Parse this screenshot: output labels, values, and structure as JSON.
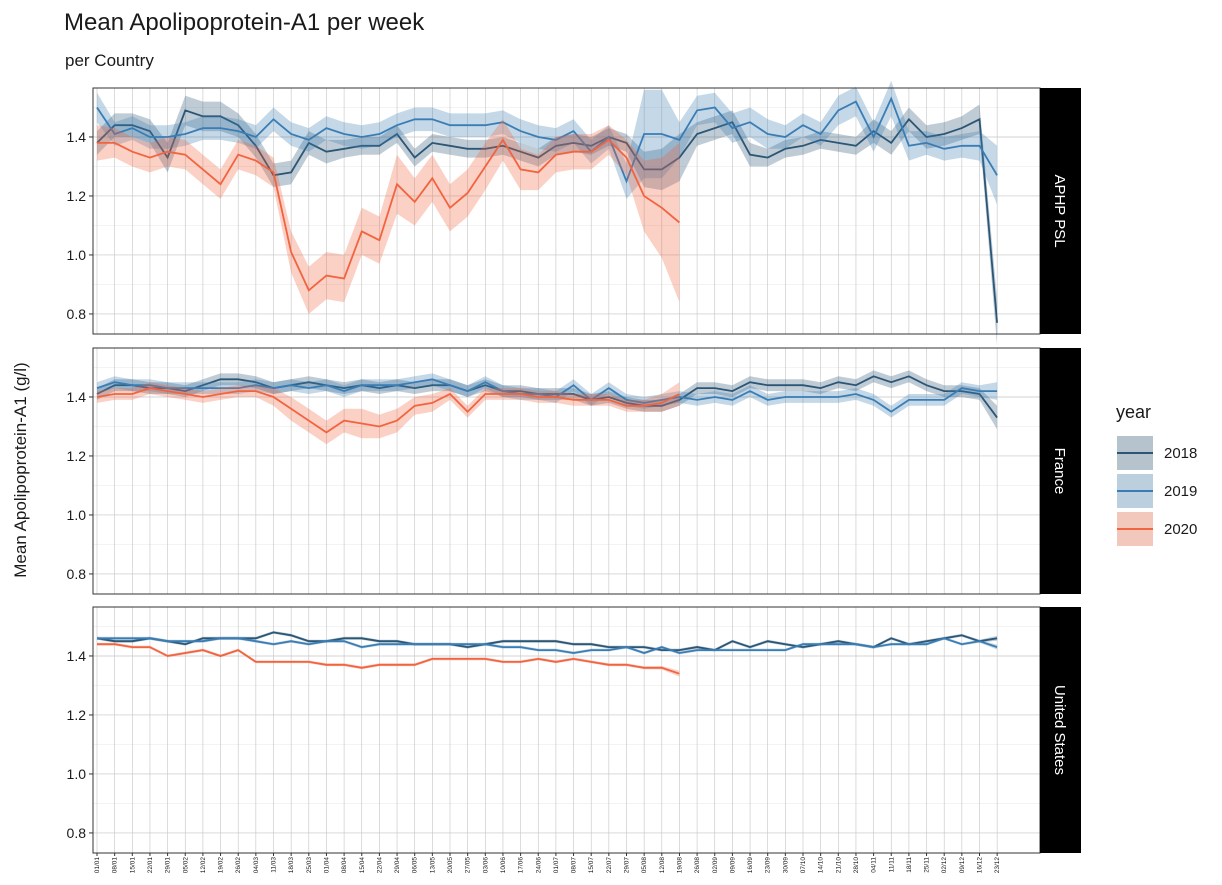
{
  "title": "Mean Apolipoprotein-A1 per week",
  "subtitle": "per Country",
  "y_label": "Mean Apolipoprotein-A1 (g/l)",
  "legend_title": "year",
  "shared": {
    "categories": [
      "01/01",
      "08/01",
      "15/01",
      "22/01",
      "29/01",
      "05/02",
      "12/02",
      "19/02",
      "26/02",
      "04/03",
      "11/03",
      "18/03",
      "25/03",
      "01/04",
      "08/04",
      "15/04",
      "22/04",
      "29/04",
      "06/05",
      "13/05",
      "20/05",
      "27/05",
      "03/06",
      "10/06",
      "17/06",
      "24/06",
      "01/07",
      "08/07",
      "15/07",
      "22/07",
      "29/07",
      "05/08",
      "12/08",
      "19/08",
      "26/08",
      "02/09",
      "09/09",
      "16/09",
      "23/09",
      "30/09",
      "07/10",
      "14/10",
      "21/10",
      "28/10",
      "04/11",
      "11/11",
      "18/11",
      "25/11",
      "02/12",
      "09/12",
      "16/12",
      "23/12"
    ],
    "ylim": [
      0.732,
      1.566
    ],
    "yticks": [
      0.8,
      {
        "value": 1,
        "label": "1.0"
      },
      1.2,
      1.4
    ],
    "y_minor_ticks": [
      0.9,
      1.1,
      1.3,
      1.5
    ],
    "grid": true
  },
  "chart_data": [
    {
      "type": "line",
      "strip": "APHP PSL",
      "series": [
        {
          "name": "2018",
          "color": "#2b5676",
          "values": [
            1.38,
            1.44,
            1.44,
            1.42,
            1.33,
            1.49,
            1.47,
            1.47,
            1.44,
            1.37,
            1.27,
            1.28,
            1.38,
            1.35,
            1.36,
            1.37,
            1.37,
            1.41,
            1.33,
            1.38,
            1.37,
            1.36,
            1.36,
            1.37,
            1.35,
            1.33,
            1.37,
            1.38,
            1.37,
            1.4,
            1.38,
            1.29,
            1.29,
            1.33,
            1.41,
            1.43,
            1.45,
            1.34,
            1.33,
            1.36,
            1.37,
            1.39,
            1.38,
            1.37,
            1.42,
            1.38,
            1.46,
            1.4,
            1.41,
            1.43,
            1.46,
            0.77
          ],
          "error": [
            0.04,
            0.04,
            0.04,
            0.04,
            0.05,
            0.05,
            0.05,
            0.05,
            0.04,
            0.04,
            0.04,
            0.04,
            0.04,
            0.04,
            0.03,
            0.03,
            0.03,
            0.03,
            0.03,
            0.03,
            0.03,
            0.03,
            0.03,
            0.03,
            0.03,
            0.03,
            0.03,
            0.03,
            0.03,
            0.03,
            0.03,
            0.06,
            0.07,
            0.08,
            0.04,
            0.04,
            0.04,
            0.04,
            0.03,
            0.03,
            0.03,
            0.03,
            0.03,
            0.03,
            0.04,
            0.04,
            0.04,
            0.04,
            0.04,
            0.04,
            0.05,
            0.08
          ]
        },
        {
          "name": "2019",
          "color": "#3a7db4",
          "values": [
            1.5,
            1.41,
            1.43,
            1.4,
            1.4,
            1.41,
            1.43,
            1.43,
            1.42,
            1.4,
            1.46,
            1.41,
            1.39,
            1.43,
            1.41,
            1.4,
            1.41,
            1.44,
            1.46,
            1.46,
            1.44,
            1.44,
            1.44,
            1.45,
            1.42,
            1.4,
            1.39,
            1.42,
            1.35,
            1.4,
            1.25,
            1.41,
            1.41,
            1.39,
            1.49,
            1.5,
            1.43,
            1.45,
            1.41,
            1.4,
            1.44,
            1.41,
            1.49,
            1.52,
            1.4,
            1.53,
            1.37,
            1.38,
            1.36,
            1.37,
            1.37,
            1.27
          ],
          "error": [
            0.05,
            0.04,
            0.04,
            0.04,
            0.04,
            0.04,
            0.04,
            0.04,
            0.04,
            0.04,
            0.04,
            0.04,
            0.04,
            0.04,
            0.04,
            0.04,
            0.04,
            0.04,
            0.04,
            0.04,
            0.04,
            0.04,
            0.04,
            0.04,
            0.04,
            0.04,
            0.04,
            0.04,
            0.04,
            0.04,
            0.06,
            0.15,
            0.15,
            0.06,
            0.05,
            0.05,
            0.05,
            0.05,
            0.05,
            0.04,
            0.04,
            0.04,
            0.05,
            0.05,
            0.05,
            0.06,
            0.05,
            0.04,
            0.04,
            0.04,
            0.05,
            0.1
          ]
        },
        {
          "name": "2020",
          "color": "#f26440",
          "values": [
            1.38,
            1.38,
            1.35,
            1.33,
            1.35,
            1.34,
            1.29,
            1.24,
            1.34,
            1.32,
            1.28,
            1.01,
            0.88,
            0.93,
            0.92,
            1.08,
            1.05,
            1.24,
            1.18,
            1.26,
            1.16,
            1.21,
            1.3,
            1.39,
            1.29,
            1.28,
            1.34,
            1.35,
            1.35,
            1.39,
            1.33,
            1.2,
            1.16,
            1.11,
            null,
            null,
            null,
            null,
            null,
            null,
            null,
            null,
            null,
            null,
            null,
            null,
            null,
            null,
            null,
            null,
            null,
            null
          ],
          "error": [
            0.06,
            0.05,
            0.05,
            0.05,
            0.05,
            0.05,
            0.05,
            0.05,
            0.05,
            0.05,
            0.05,
            0.07,
            0.08,
            0.08,
            0.08,
            0.08,
            0.08,
            0.1,
            0.08,
            0.08,
            0.08,
            0.08,
            0.08,
            0.07,
            0.07,
            0.06,
            0.06,
            0.06,
            0.06,
            0.05,
            0.06,
            0.12,
            0.17,
            0.27,
            null,
            null,
            null,
            null,
            null,
            null,
            null,
            null,
            null,
            null,
            null,
            null,
            null,
            null,
            null,
            null,
            null,
            null
          ]
        }
      ]
    },
    {
      "type": "line",
      "strip": "France",
      "series": [
        {
          "name": "2018",
          "color": "#2b5676",
          "values": [
            1.41,
            1.44,
            1.44,
            1.43,
            1.43,
            1.42,
            1.44,
            1.46,
            1.46,
            1.45,
            1.43,
            1.44,
            1.45,
            1.44,
            1.43,
            1.44,
            1.43,
            1.44,
            1.43,
            1.44,
            1.44,
            1.42,
            1.44,
            1.42,
            1.42,
            1.41,
            1.41,
            1.41,
            1.39,
            1.4,
            1.38,
            1.37,
            1.37,
            1.39,
            1.43,
            1.43,
            1.42,
            1.45,
            1.44,
            1.44,
            1.44,
            1.43,
            1.45,
            1.44,
            1.47,
            1.45,
            1.47,
            1.44,
            1.42,
            1.42,
            1.41,
            1.33
          ],
          "error": [
            0.02,
            0.02,
            0.02,
            0.02,
            0.02,
            0.02,
            0.02,
            0.02,
            0.02,
            0.02,
            0.02,
            0.02,
            0.02,
            0.02,
            0.02,
            0.02,
            0.02,
            0.02,
            0.02,
            0.02,
            0.02,
            0.02,
            0.02,
            0.02,
            0.02,
            0.02,
            0.02,
            0.02,
            0.02,
            0.02,
            0.02,
            0.02,
            0.02,
            0.02,
            0.02,
            0.02,
            0.02,
            0.02,
            0.02,
            0.02,
            0.02,
            0.02,
            0.02,
            0.02,
            0.02,
            0.02,
            0.02,
            0.02,
            0.02,
            0.02,
            0.02,
            0.04
          ]
        },
        {
          "name": "2019",
          "color": "#3a7db4",
          "values": [
            1.43,
            1.45,
            1.44,
            1.44,
            1.43,
            1.43,
            1.43,
            1.43,
            1.43,
            1.44,
            1.43,
            1.44,
            1.43,
            1.44,
            1.42,
            1.44,
            1.44,
            1.44,
            1.45,
            1.46,
            1.44,
            1.42,
            1.45,
            1.42,
            1.41,
            1.41,
            1.4,
            1.44,
            1.39,
            1.43,
            1.39,
            1.38,
            1.39,
            1.4,
            1.39,
            1.4,
            1.39,
            1.42,
            1.39,
            1.4,
            1.4,
            1.4,
            1.4,
            1.41,
            1.39,
            1.35,
            1.39,
            1.39,
            1.39,
            1.43,
            1.42,
            1.42
          ],
          "error": [
            0.02,
            0.02,
            0.02,
            0.02,
            0.02,
            0.02,
            0.02,
            0.02,
            0.02,
            0.02,
            0.02,
            0.02,
            0.02,
            0.02,
            0.02,
            0.02,
            0.02,
            0.02,
            0.02,
            0.02,
            0.02,
            0.02,
            0.02,
            0.02,
            0.02,
            0.02,
            0.02,
            0.02,
            0.02,
            0.02,
            0.02,
            0.02,
            0.02,
            0.02,
            0.02,
            0.02,
            0.02,
            0.02,
            0.02,
            0.02,
            0.02,
            0.02,
            0.02,
            0.02,
            0.02,
            0.02,
            0.02,
            0.02,
            0.02,
            0.02,
            0.02,
            0.03
          ]
        },
        {
          "name": "2020",
          "color": "#f26440",
          "values": [
            1.4,
            1.41,
            1.41,
            1.43,
            1.42,
            1.41,
            1.4,
            1.41,
            1.42,
            1.42,
            1.4,
            1.36,
            1.32,
            1.28,
            1.32,
            1.31,
            1.3,
            1.32,
            1.37,
            1.38,
            1.41,
            1.35,
            1.41,
            1.41,
            1.41,
            1.4,
            1.4,
            1.39,
            1.39,
            1.39,
            1.37,
            1.37,
            1.38,
            1.41,
            null,
            null,
            null,
            null,
            null,
            null,
            null,
            null,
            null,
            null,
            null,
            null,
            null,
            null,
            null,
            null,
            null,
            null
          ],
          "error": [
            0.02,
            0.02,
            0.02,
            0.02,
            0.02,
            0.02,
            0.02,
            0.02,
            0.02,
            0.02,
            0.03,
            0.04,
            0.04,
            0.04,
            0.04,
            0.05,
            0.04,
            0.04,
            0.03,
            0.03,
            0.02,
            0.02,
            0.02,
            0.02,
            0.02,
            0.02,
            0.02,
            0.02,
            0.02,
            0.02,
            0.02,
            0.02,
            0.03,
            0.04,
            null,
            null,
            null,
            null,
            null,
            null,
            null,
            null,
            null,
            null,
            null,
            null,
            null,
            null,
            null,
            null,
            null,
            null
          ]
        }
      ]
    },
    {
      "type": "line",
      "strip": "United States",
      "series": [
        {
          "name": "2018",
          "color": "#2b5676",
          "values": [
            1.46,
            1.45,
            1.45,
            1.46,
            1.45,
            1.44,
            1.46,
            1.46,
            1.46,
            1.46,
            1.48,
            1.47,
            1.45,
            1.45,
            1.46,
            1.46,
            1.45,
            1.45,
            1.44,
            1.44,
            1.44,
            1.43,
            1.44,
            1.45,
            1.45,
            1.45,
            1.45,
            1.44,
            1.44,
            1.43,
            1.43,
            1.43,
            1.42,
            1.42,
            1.43,
            1.42,
            1.45,
            1.43,
            1.45,
            1.44,
            1.43,
            1.44,
            1.45,
            1.44,
            1.43,
            1.46,
            1.44,
            1.45,
            1.46,
            1.47,
            1.45,
            1.46
          ],
          "error": [
            0.005,
            0.005,
            0.005,
            0.005,
            0.005,
            0.005,
            0.005,
            0.005,
            0.005,
            0.005,
            0.005,
            0.005,
            0.005,
            0.005,
            0.005,
            0.005,
            0.005,
            0.005,
            0.005,
            0.005,
            0.005,
            0.005,
            0.005,
            0.005,
            0.005,
            0.005,
            0.005,
            0.005,
            0.005,
            0.005,
            0.005,
            0.005,
            0.005,
            0.005,
            0.005,
            0.005,
            0.005,
            0.005,
            0.005,
            0.005,
            0.005,
            0.005,
            0.005,
            0.005,
            0.005,
            0.005,
            0.005,
            0.005,
            0.005,
            0.005,
            0.005,
            0.008
          ]
        },
        {
          "name": "2019",
          "color": "#3a7db4",
          "values": [
            1.46,
            1.46,
            1.46,
            1.46,
            1.45,
            1.45,
            1.45,
            1.46,
            1.46,
            1.45,
            1.44,
            1.45,
            1.44,
            1.45,
            1.45,
            1.43,
            1.44,
            1.44,
            1.44,
            1.44,
            1.44,
            1.44,
            1.44,
            1.43,
            1.43,
            1.42,
            1.42,
            1.41,
            1.42,
            1.42,
            1.43,
            1.41,
            1.43,
            1.41,
            1.42,
            1.42,
            1.42,
            1.42,
            1.42,
            1.42,
            1.44,
            1.44,
            1.44,
            1.44,
            1.43,
            1.44,
            1.44,
            1.44,
            1.46,
            1.44,
            1.45,
            1.43
          ],
          "error": [
            0.005,
            0.005,
            0.005,
            0.005,
            0.005,
            0.005,
            0.005,
            0.005,
            0.005,
            0.005,
            0.005,
            0.005,
            0.005,
            0.005,
            0.005,
            0.005,
            0.005,
            0.005,
            0.005,
            0.005,
            0.005,
            0.005,
            0.005,
            0.005,
            0.005,
            0.005,
            0.005,
            0.005,
            0.005,
            0.005,
            0.005,
            0.005,
            0.005,
            0.005,
            0.005,
            0.005,
            0.005,
            0.005,
            0.005,
            0.005,
            0.005,
            0.005,
            0.005,
            0.005,
            0.005,
            0.005,
            0.005,
            0.005,
            0.005,
            0.005,
            0.005,
            0.008
          ]
        },
        {
          "name": "2020",
          "color": "#f26440",
          "values": [
            1.44,
            1.44,
            1.43,
            1.43,
            1.4,
            1.41,
            1.42,
            1.4,
            1.42,
            1.38,
            1.38,
            1.38,
            1.38,
            1.37,
            1.37,
            1.36,
            1.37,
            1.37,
            1.37,
            1.39,
            1.39,
            1.39,
            1.39,
            1.38,
            1.38,
            1.39,
            1.38,
            1.39,
            1.38,
            1.37,
            1.37,
            1.36,
            1.36,
            1.34,
            null,
            null,
            null,
            null,
            null,
            null,
            null,
            null,
            null,
            null,
            null,
            null,
            null,
            null,
            null,
            null,
            null,
            null
          ],
          "error": [
            0.005,
            0.005,
            0.005,
            0.005,
            0.005,
            0.005,
            0.005,
            0.005,
            0.005,
            0.005,
            0.005,
            0.005,
            0.005,
            0.005,
            0.005,
            0.005,
            0.005,
            0.005,
            0.005,
            0.005,
            0.005,
            0.005,
            0.005,
            0.005,
            0.005,
            0.005,
            0.005,
            0.005,
            0.005,
            0.005,
            0.005,
            0.005,
            0.006,
            0.01,
            null,
            null,
            null,
            null,
            null,
            null,
            null,
            null,
            null,
            null,
            null,
            null,
            null,
            null,
            null,
            null,
            null,
            null
          ]
        }
      ]
    }
  ]
}
